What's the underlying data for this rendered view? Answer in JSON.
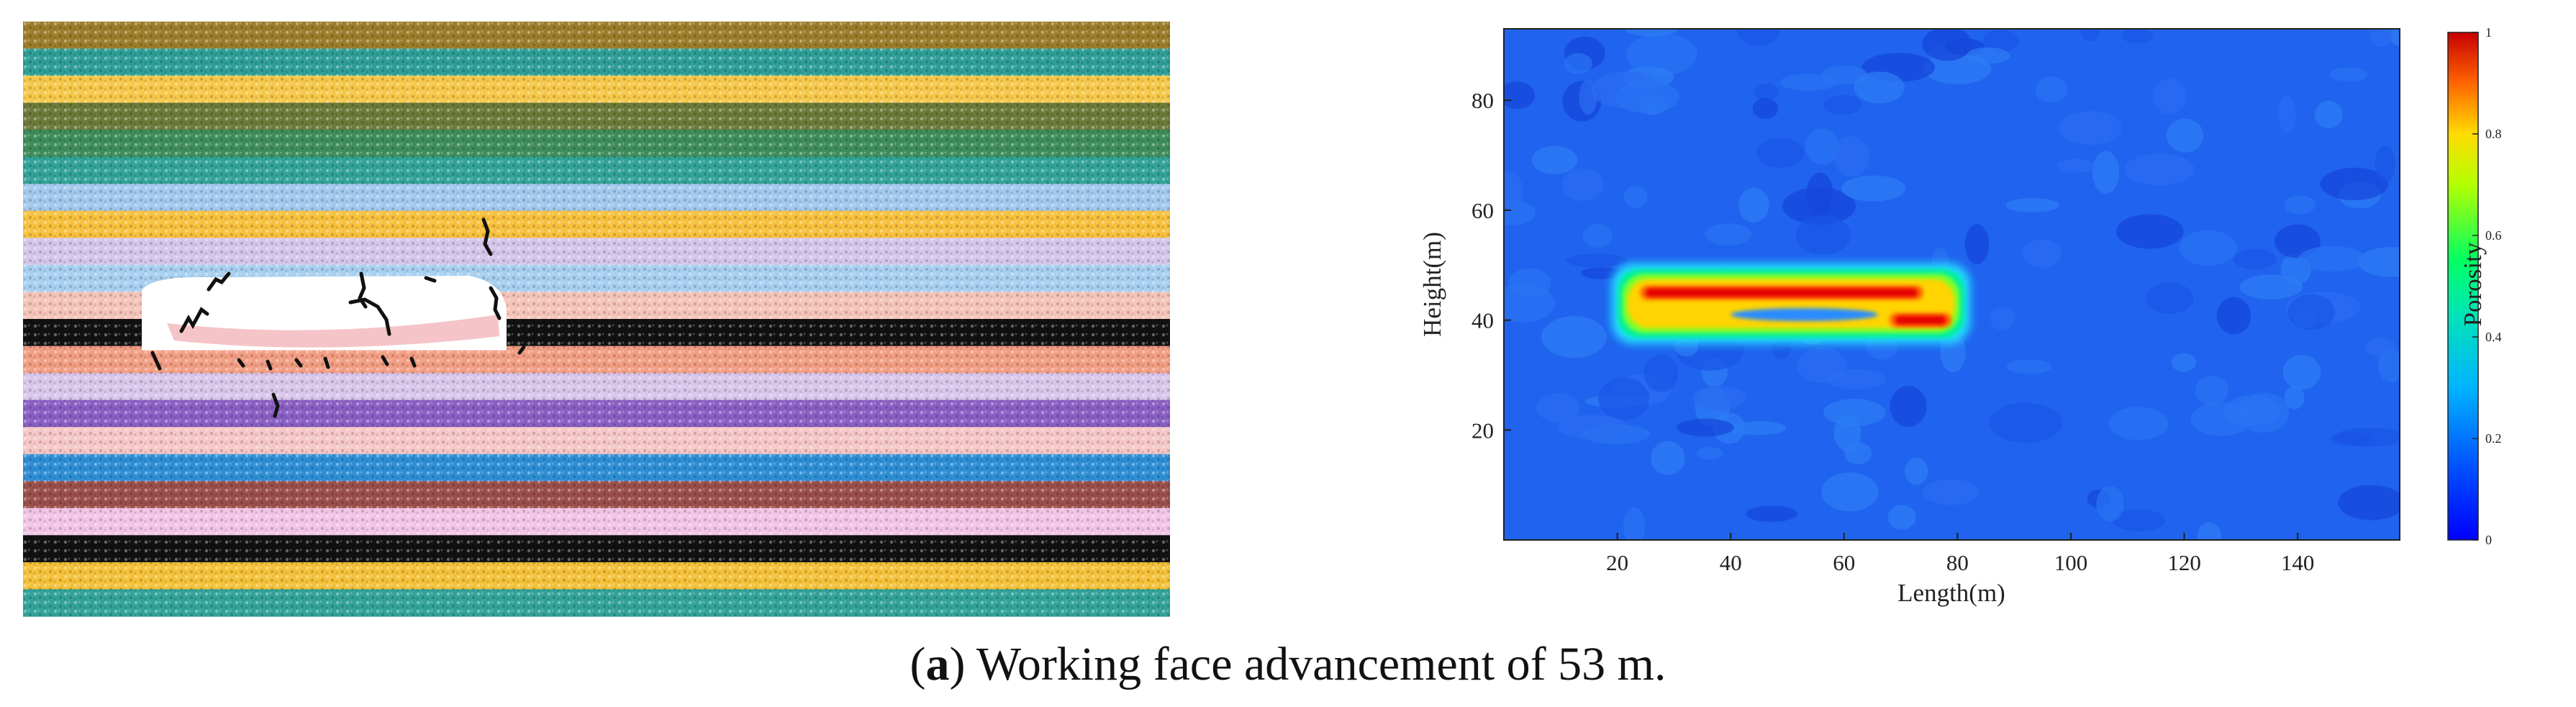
{
  "caption": {
    "label": "a",
    "text": "Working face advancement of 53 m."
  },
  "model_layers": {
    "colors_top_to_bottom": [
      "#9c7d2b",
      "#2e9e97",
      "#f6c84a",
      "#6c7a3a",
      "#3f8d5a",
      "#33a39a",
      "#a3c8ee",
      "#f7c13e",
      "#d4c6ea",
      "#a7cfef",
      "#f5c4b8",
      "#111111",
      "#f29e84",
      "#d9c6ea",
      "#8a5fc4",
      "#f5c7c6",
      "#2f8ed4",
      "#9a4f4b",
      "#f2c4e6",
      "#111111",
      "#f4c13a",
      "#33a39a"
    ],
    "caved_zone_color": "#ffffff",
    "crack_color": "#111111"
  },
  "chart_data": {
    "type": "heatmap",
    "title": "",
    "xlabel": "Length(m)",
    "ylabel": "Height(m)",
    "xlim": [
      0,
      158
    ],
    "ylim": [
      0,
      93
    ],
    "xticks": [
      20,
      40,
      60,
      80,
      100,
      120,
      140
    ],
    "yticks": [
      20,
      40,
      60,
      80
    ],
    "colorbar": {
      "label": "Porosity",
      "range": [
        0,
        1
      ],
      "ticks": [
        "0",
        "0.2",
        "0.4",
        "0.6",
        "0.8",
        "1"
      ],
      "colors": [
        "#0000ff",
        "#0066ff",
        "#00c8ff",
        "#00ff7f",
        "#c8ff00",
        "#ffc800",
        "#ff5a00",
        "#c80000"
      ]
    },
    "background_porosity": 0.18,
    "high_porosity_zone": {
      "x_range": [
        20,
        80
      ],
      "y_range": [
        38,
        48
      ],
      "peak_porosity": 0.95,
      "peak_bands": [
        {
          "x": [
            24,
            74
          ],
          "y": 45,
          "porosity": 0.95
        },
        {
          "x": [
            68,
            79
          ],
          "y": 40,
          "porosity": 0.9
        }
      ]
    }
  }
}
